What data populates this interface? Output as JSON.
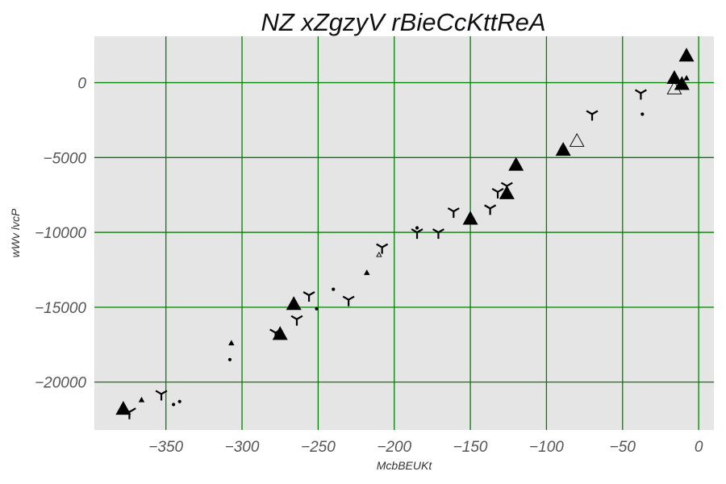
{
  "chart_data": {
    "type": "scatter",
    "title": "NZ xZgzyV  rBieCcKttReA",
    "xlabel": "McbBEUKt",
    "ylabel": "wWv lvcP",
    "xlim": [
      -397,
      10
    ],
    "ylim": [
      -23200,
      3100
    ],
    "xticks": [
      -350,
      -300,
      -250,
      -200,
      -150,
      -100,
      -50,
      0
    ],
    "xtick_labels": [
      "−350",
      "−300",
      "−250",
      "−200",
      "−150",
      "−100",
      "−50",
      "0"
    ],
    "yticks": [
      0,
      -5000,
      -10000,
      -15000,
      -20000
    ],
    "ytick_labels": [
      "0",
      "−5000",
      "−10000",
      "−15000",
      "−20000"
    ],
    "grid": true,
    "colors": {
      "background": "#e5e5e5",
      "grid": "#008000",
      "marker": "#000000"
    },
    "points": [
      {
        "x": -378,
        "y": -21800,
        "marker": "triangle",
        "size": 12
      },
      {
        "x": -366,
        "y": -21200,
        "marker": "triangle",
        "size": 4
      },
      {
        "x": -374,
        "y": -22000,
        "marker": "tri",
        "size": 9
      },
      {
        "x": -353,
        "y": -20800,
        "marker": "tri",
        "size": 8
      },
      {
        "x": -345,
        "y": -21500,
        "marker": "dot",
        "size": 3
      },
      {
        "x": -341,
        "y": -21300,
        "marker": "dot",
        "size": 3
      },
      {
        "x": -307,
        "y": -17400,
        "marker": "triangle",
        "size": 4
      },
      {
        "x": -308,
        "y": -18500,
        "marker": "dot",
        "size": 3
      },
      {
        "x": -278,
        "y": -16700,
        "marker": "tri",
        "size": 8
      },
      {
        "x": -275,
        "y": -16800,
        "marker": "triangle",
        "size": 12
      },
      {
        "x": -266,
        "y": -14800,
        "marker": "triangle",
        "size": 12
      },
      {
        "x": -264,
        "y": -15800,
        "marker": "tri",
        "size": 8
      },
      {
        "x": -256,
        "y": -14200,
        "marker": "tri",
        "size": 8
      },
      {
        "x": -251,
        "y": -15100,
        "marker": "dot",
        "size": 3
      },
      {
        "x": -240,
        "y": -13800,
        "marker": "dot",
        "size": 3
      },
      {
        "x": -230,
        "y": -14500,
        "marker": "tri",
        "size": 8
      },
      {
        "x": -218,
        "y": -12700,
        "marker": "triangle",
        "size": 4
      },
      {
        "x": -208,
        "y": -11000,
        "marker": "tri",
        "size": 8
      },
      {
        "x": -210,
        "y": -11500,
        "marker": "triangle-open",
        "size": 4
      },
      {
        "x": -185,
        "y": -10000,
        "marker": "tri",
        "size": 8
      },
      {
        "x": -185,
        "y": -9700,
        "marker": "dot",
        "size": 3
      },
      {
        "x": -171,
        "y": -10000,
        "marker": "tri",
        "size": 8
      },
      {
        "x": -161,
        "y": -8600,
        "marker": "tri",
        "size": 8
      },
      {
        "x": -150,
        "y": -9100,
        "marker": "triangle",
        "size": 12
      },
      {
        "x": -137,
        "y": -8400,
        "marker": "tri",
        "size": 8
      },
      {
        "x": -132,
        "y": -7300,
        "marker": "tri",
        "size": 8
      },
      {
        "x": -126,
        "y": -6900,
        "marker": "tri",
        "size": 8
      },
      {
        "x": -126,
        "y": -7400,
        "marker": "triangle",
        "size": 12
      },
      {
        "x": -120,
        "y": -5500,
        "marker": "triangle",
        "size": 12
      },
      {
        "x": -89,
        "y": -4500,
        "marker": "triangle",
        "size": 12
      },
      {
        "x": -90,
        "y": -4400,
        "marker": "triangle",
        "size": 5
      },
      {
        "x": -80,
        "y": -3900,
        "marker": "triangle-open",
        "size": 12
      },
      {
        "x": -70,
        "y": -2100,
        "marker": "tri",
        "size": 8
      },
      {
        "x": -38,
        "y": -700,
        "marker": "tri",
        "size": 8
      },
      {
        "x": -37,
        "y": -2100,
        "marker": "dot",
        "size": 3
      },
      {
        "x": -16,
        "y": 300,
        "marker": "triangle",
        "size": 12
      },
      {
        "x": -16,
        "y": -400,
        "marker": "triangle-open",
        "size": 12
      },
      {
        "x": -11,
        "y": -100,
        "marker": "triangle",
        "size": 12
      },
      {
        "x": -8,
        "y": 1800,
        "marker": "triangle",
        "size": 12
      },
      {
        "x": -8,
        "y": 300,
        "marker": "triangle",
        "size": 4
      }
    ]
  }
}
